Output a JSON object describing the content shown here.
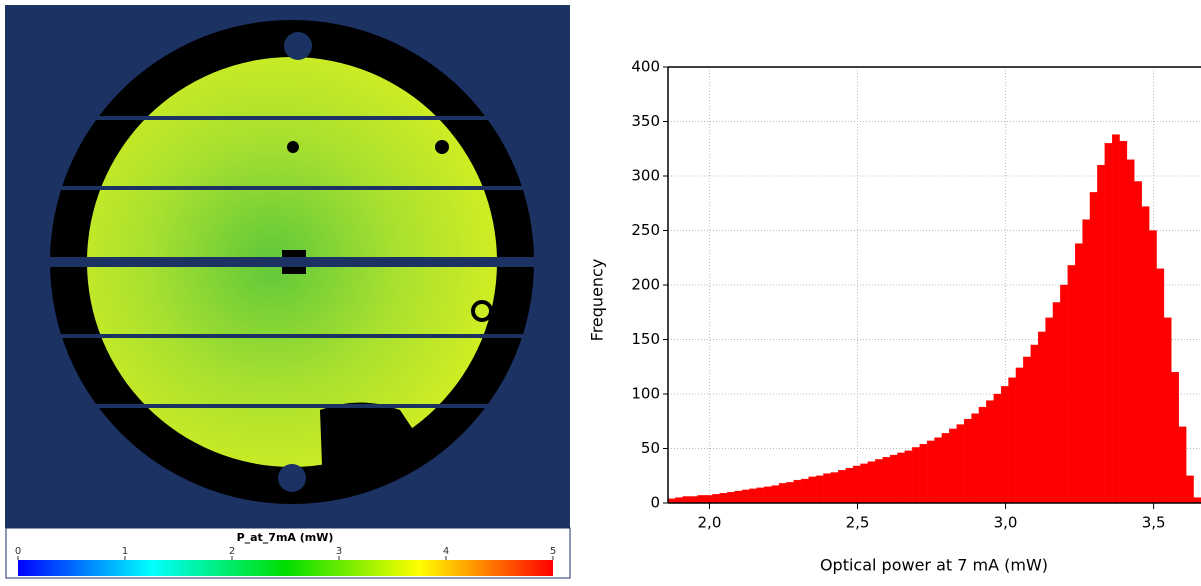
{
  "wafer_map": {
    "colorbar_label": "P_at_7mA (mW)",
    "colorbar_lim": [
      0,
      5
    ],
    "colorbar_ticks": [
      0,
      1,
      2,
      3,
      4,
      5
    ]
  },
  "chart_data": {
    "type": "histogram",
    "color": "#ff0000",
    "grid": true,
    "x_label": "Optical power at 7 mA (mW)",
    "y_label": "Frequency",
    "xlim": [
      1.86,
      3.66
    ],
    "ylim": [
      0,
      400
    ],
    "xticks": [
      {
        "value": 2.0,
        "label": "2,0"
      },
      {
        "value": 2.5,
        "label": "2,5"
      },
      {
        "value": 3.0,
        "label": "3,0"
      },
      {
        "value": 3.5,
        "label": "3,5"
      }
    ],
    "yticks": [
      0,
      50,
      100,
      150,
      200,
      250,
      300,
      350,
      400
    ],
    "bins": [
      1.86,
      1.885,
      1.91,
      1.935,
      1.96,
      1.985,
      2.01,
      2.035,
      2.06,
      2.085,
      2.11,
      2.135,
      2.16,
      2.185,
      2.21,
      2.235,
      2.26,
      2.285,
      2.31,
      2.335,
      2.36,
      2.385,
      2.41,
      2.435,
      2.46,
      2.485,
      2.51,
      2.535,
      2.56,
      2.585,
      2.61,
      2.635,
      2.66,
      2.685,
      2.71,
      2.735,
      2.76,
      2.785,
      2.81,
      2.835,
      2.86,
      2.885,
      2.91,
      2.935,
      2.96,
      2.985,
      3.01,
      3.035,
      3.06,
      3.085,
      3.11,
      3.135,
      3.16,
      3.185,
      3.21,
      3.235,
      3.26,
      3.285,
      3.31,
      3.335,
      3.36,
      3.385,
      3.41,
      3.435,
      3.46,
      3.485,
      3.51,
      3.535,
      3.56,
      3.585,
      3.61,
      3.635,
      3.66
    ],
    "values": [
      4,
      5,
      6,
      6,
      7,
      7,
      8,
      9,
      10,
      11,
      12,
      13,
      14,
      15,
      16,
      18,
      19,
      21,
      22,
      24,
      25,
      27,
      28,
      30,
      32,
      34,
      36,
      38,
      40,
      42,
      44,
      46,
      48,
      51,
      54,
      57,
      60,
      64,
      68,
      72,
      77,
      82,
      88,
      94,
      100,
      107,
      115,
      124,
      134,
      145,
      157,
      170,
      184,
      200,
      218,
      238,
      260,
      285,
      310,
      330,
      338,
      332,
      315,
      295,
      272,
      250,
      215,
      170,
      120,
      70,
      25,
      5
    ]
  }
}
